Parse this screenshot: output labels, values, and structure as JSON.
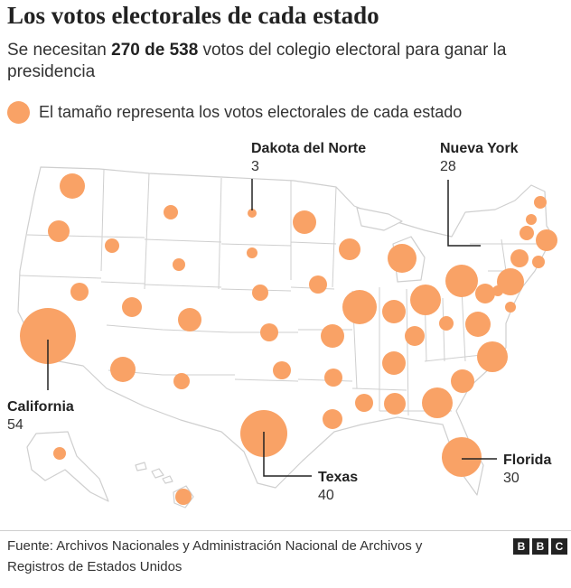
{
  "header": {
    "title": "Los votos electorales de cada estado",
    "subtitle_pre": "Se necesitan ",
    "subtitle_bold": "270 de 538",
    "subtitle_post": " votos del colegio electoral para ganar la presidencia"
  },
  "legend": {
    "text": "El tamaño representa los votos electorales de cada estado"
  },
  "colors": {
    "bubble": "#f9a266",
    "land": "#ffffff",
    "border": "#cfcfcf",
    "text": "#222222"
  },
  "callouts": [
    {
      "name": "Dakota del Norte",
      "value": "3"
    },
    {
      "name": "Nueva York",
      "value": "28"
    },
    {
      "name": "California",
      "value": "54"
    },
    {
      "name": "Texas",
      "value": "40"
    },
    {
      "name": "Florida",
      "value": "30"
    }
  ],
  "footer": {
    "source": "Fuente: Archivos Nacionales y Administración Nacional de Archivos y Registros de Estados Unidos",
    "logo_letters": [
      "B",
      "B",
      "C"
    ]
  }
}
